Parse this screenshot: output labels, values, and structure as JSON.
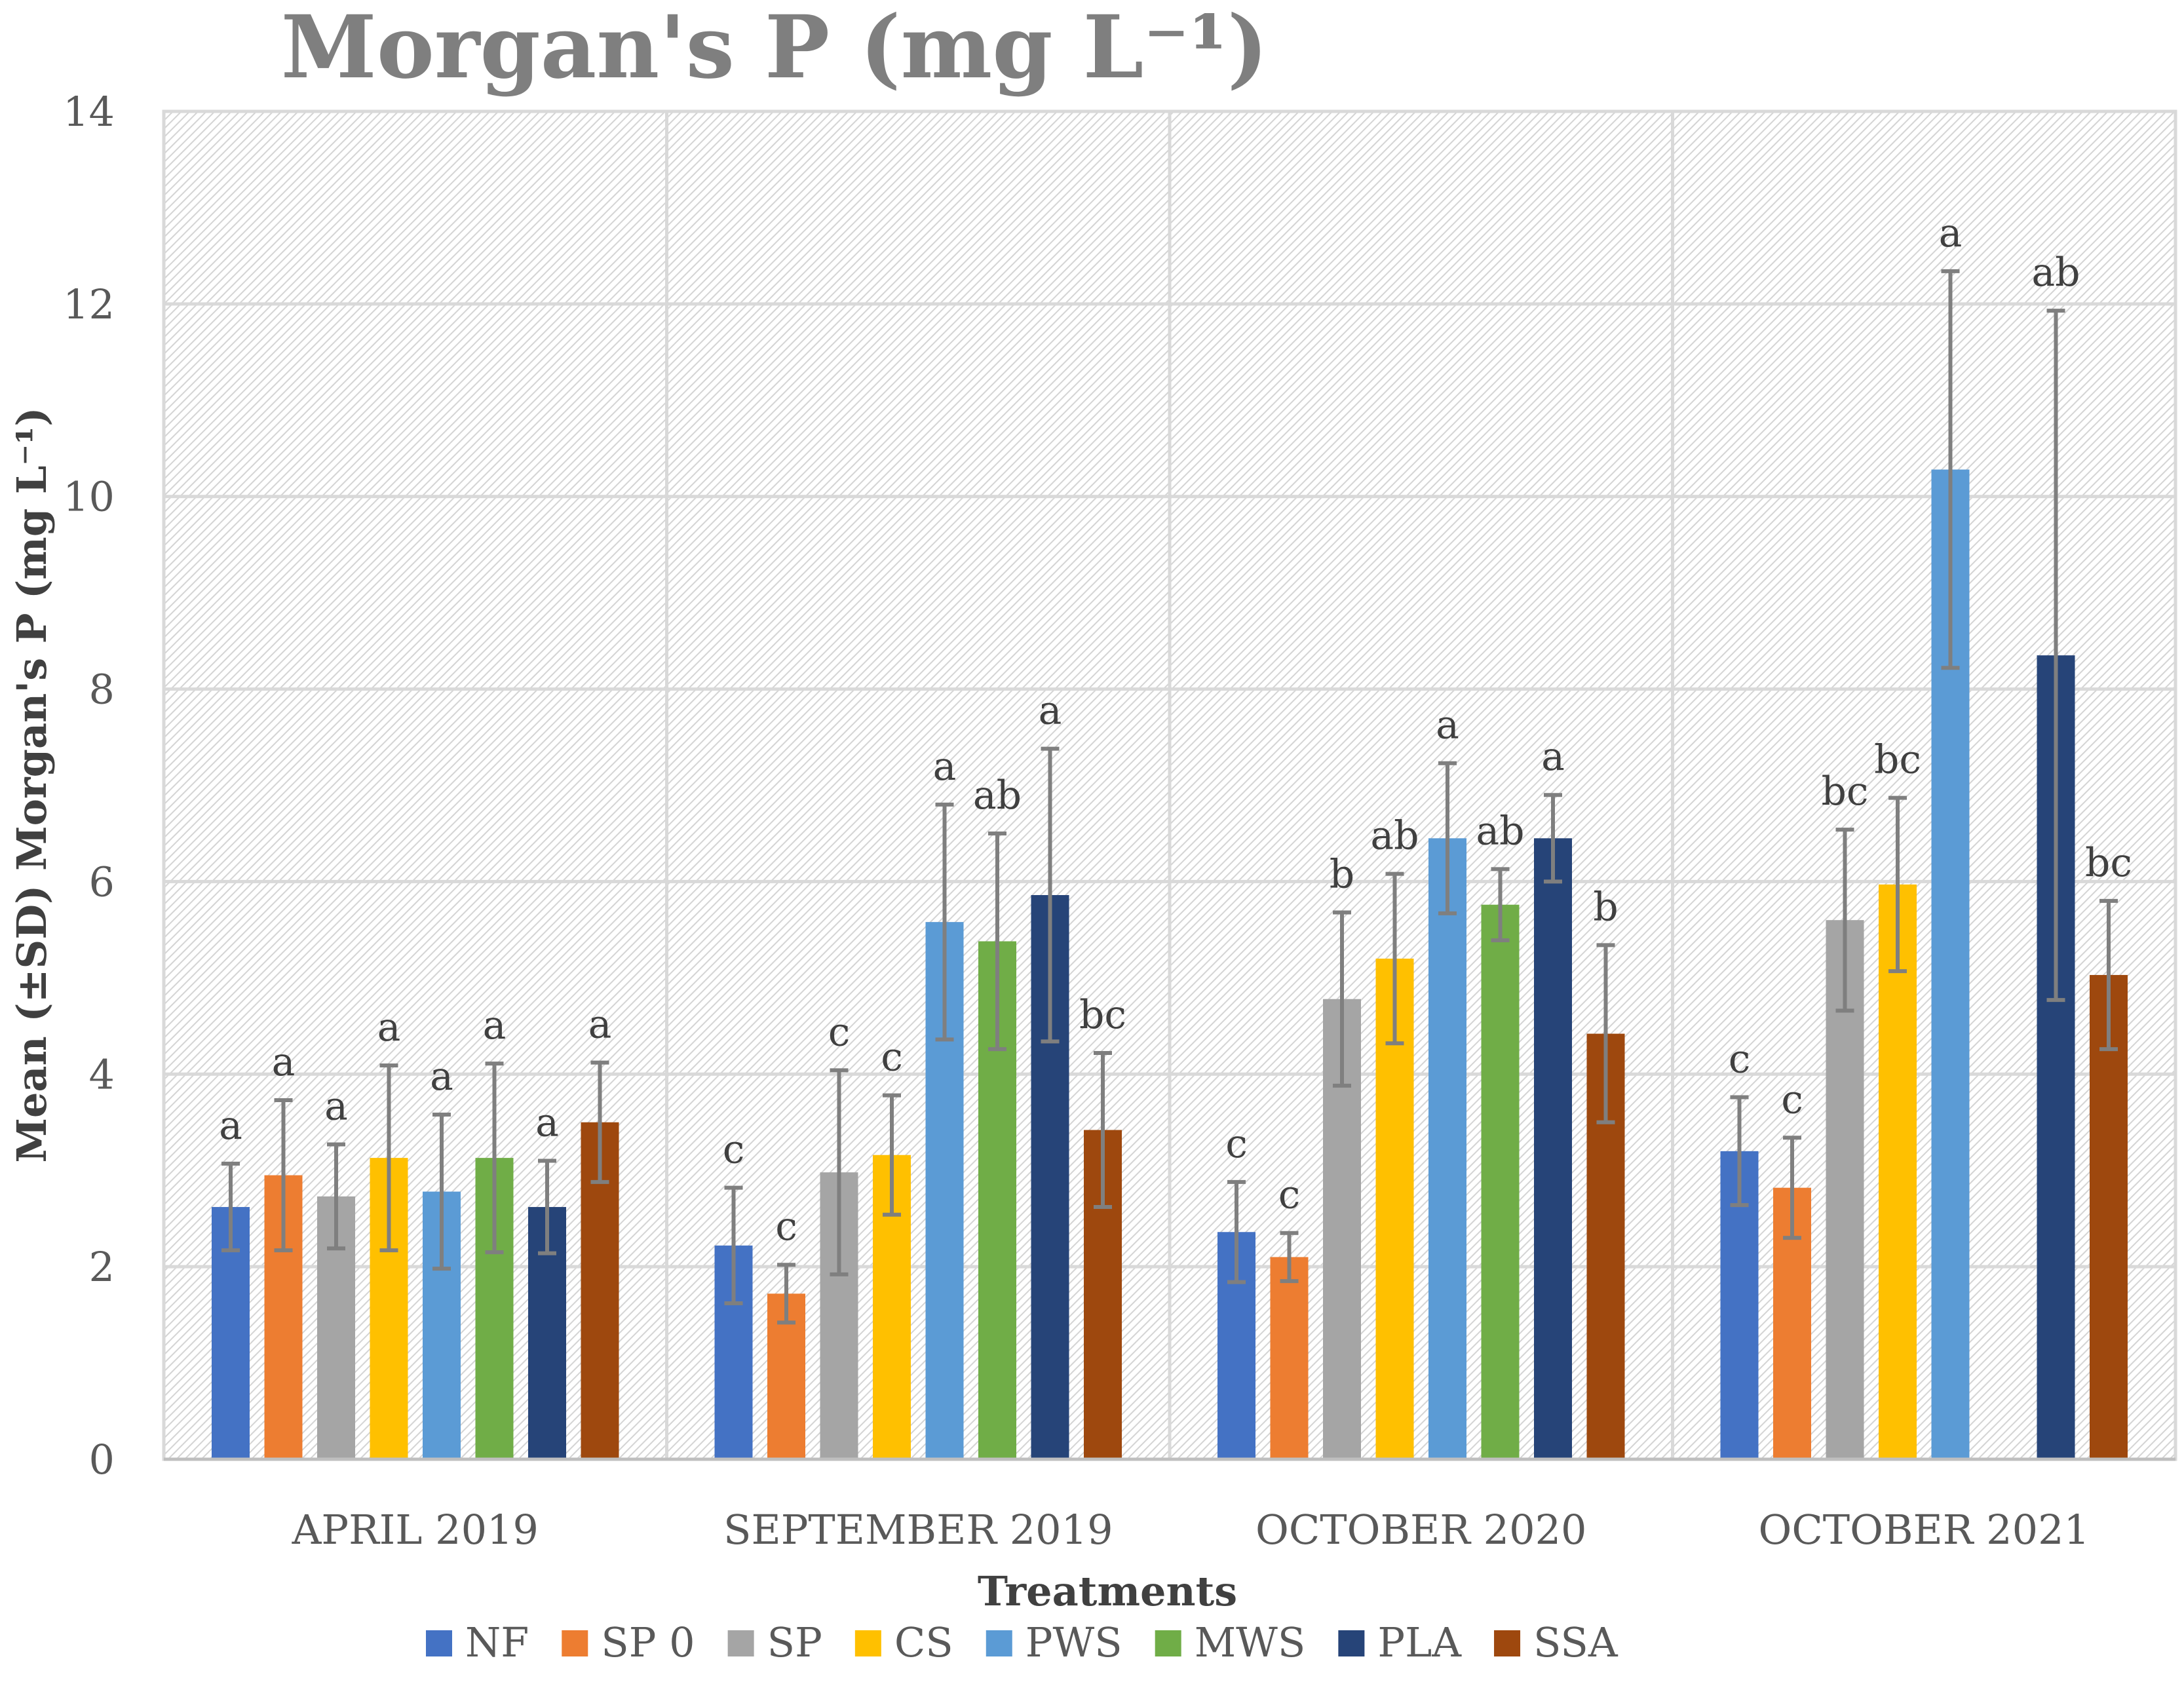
{
  "chart_data": {
    "type": "bar",
    "title": "Morgan's P (mg L⁻¹)",
    "xlabel": "Treatments",
    "ylabel": "Mean (±SD) Morgan's P (mg L⁻¹)",
    "ylim": [
      0,
      14
    ],
    "yticks": [
      0,
      2,
      4,
      6,
      8,
      10,
      12,
      14
    ],
    "grid": true,
    "legend_position": "bottom",
    "categories": [
      "APRIL 2019",
      "SEPTEMBER 2019",
      "OCTOBER 2020",
      "OCTOBER 2021"
    ],
    "series": [
      {
        "name": "NF",
        "color": "#4472c4",
        "values": [
          2.62,
          2.22,
          2.36,
          3.2
        ],
        "sd": [
          0.45,
          0.6,
          0.52,
          0.56
        ],
        "letters": [
          "a",
          "c",
          "c",
          "c"
        ]
      },
      {
        "name": "SP 0",
        "color": "#ed7d31",
        "values": [
          2.95,
          1.72,
          2.1,
          2.82
        ],
        "sd": [
          0.78,
          0.3,
          0.25,
          0.52
        ],
        "letters": [
          "a",
          "c",
          "c",
          "c"
        ]
      },
      {
        "name": "SP",
        "color": "#a5a5a5",
        "values": [
          2.73,
          2.98,
          4.78,
          5.6
        ],
        "sd": [
          0.54,
          1.06,
          0.9,
          0.94
        ],
        "letters": [
          "a",
          "c",
          "b",
          "bc"
        ]
      },
      {
        "name": "CS",
        "color": "#ffc000",
        "values": [
          3.13,
          3.16,
          5.2,
          5.97
        ],
        "sd": [
          0.96,
          0.62,
          0.88,
          0.9
        ],
        "letters": [
          "a",
          "c",
          "ab",
          "bc"
        ]
      },
      {
        "name": "PWS",
        "color": "#5b9bd5",
        "values": [
          2.78,
          5.58,
          6.45,
          10.28
        ],
        "sd": [
          0.8,
          1.22,
          0.78,
          2.06
        ],
        "letters": [
          "a",
          "a",
          "a",
          "a"
        ]
      },
      {
        "name": "MWS",
        "color": "#70ad47",
        "values": [
          3.13,
          5.38,
          5.76,
          null
        ],
        "sd": [
          0.98,
          1.12,
          0.37,
          null
        ],
        "letters": [
          "a",
          "ab",
          "ab",
          null
        ]
      },
      {
        "name": "PLA",
        "color": "#264478",
        "values": [
          2.62,
          5.86,
          6.45,
          8.35
        ],
        "sd": [
          0.48,
          1.52,
          0.45,
          3.58
        ],
        "letters": [
          "a",
          "a",
          "a",
          "ab"
        ]
      },
      {
        "name": "SSA",
        "color": "#9e480e",
        "values": [
          3.5,
          3.42,
          4.42,
          5.03
        ],
        "sd": [
          0.62,
          0.8,
          0.92,
          0.77
        ],
        "letters": [
          "a",
          "bc",
          "b",
          "bc"
        ]
      }
    ]
  }
}
